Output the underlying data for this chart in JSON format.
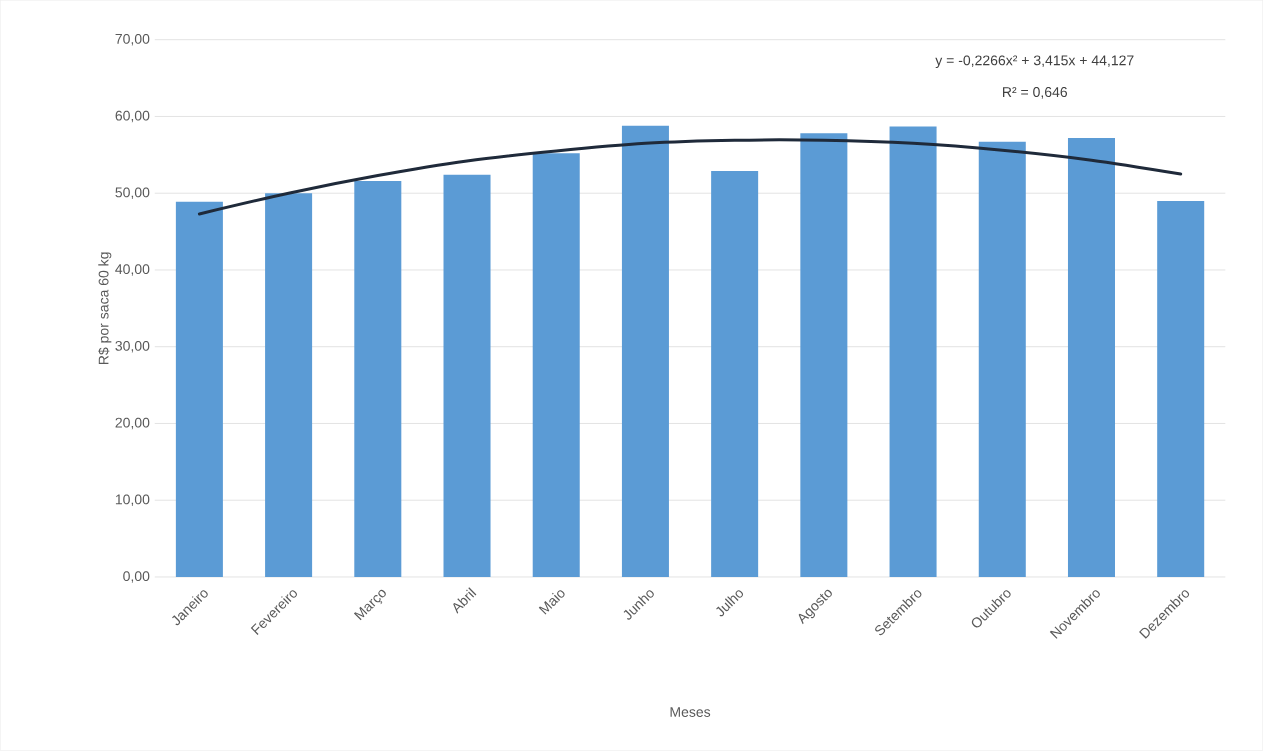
{
  "chart_data": {
    "type": "bar",
    "xlabel": "Meses",
    "ylabel": "R$ por saca 60 kg",
    "categories": [
      "Janeiro",
      "Fevereiro",
      "Março",
      "Abril",
      "Maio",
      "Junho",
      "Julho",
      "Agosto",
      "Setembro",
      "Outubro",
      "Novembro",
      "Dezembro"
    ],
    "series": [
      {
        "color": "#5b9bd5",
        "values": [
          48.9,
          50.0,
          51.6,
          52.4,
          55.2,
          58.8,
          52.9,
          57.8,
          58.7,
          56.7,
          57.2,
          49.0
        ]
      },
      {
        "type": "line",
        "color": "#1f2a3a",
        "values": [
          47.3,
          50.0,
          52.3,
          54.2,
          55.5,
          56.5,
          56.9,
          56.9,
          56.5,
          55.6,
          54.3,
          52.5
        ]
      }
    ],
    "ylim": [
      0,
      70
    ],
    "yticks": [
      {
        "value": 0,
        "label": "0,00"
      },
      {
        "value": 10,
        "label": "10,00"
      },
      {
        "value": 20,
        "label": "20,00"
      },
      {
        "value": 30,
        "label": "30,00"
      },
      {
        "value": 40,
        "label": "40,00"
      },
      {
        "value": 50,
        "label": "50,00"
      },
      {
        "value": 60,
        "label": "60,00"
      },
      {
        "value": 70,
        "label": "70,00"
      }
    ],
    "grid": "y",
    "annotations": [
      "y = -0,2266x² + 3,415x + 44,127",
      "R² = 0,646"
    ]
  }
}
